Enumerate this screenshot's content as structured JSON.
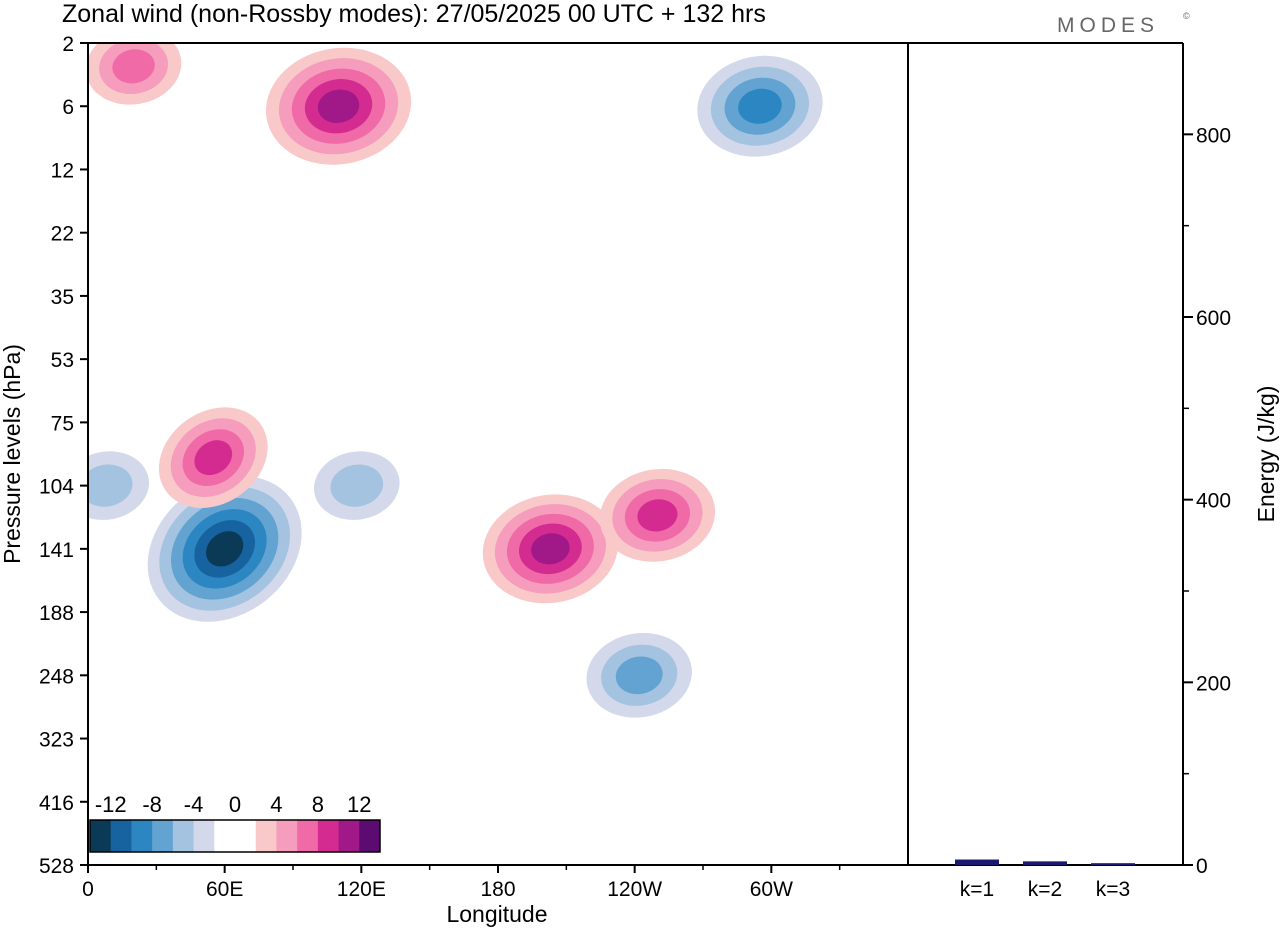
{
  "title": "Zonal wind (non-Rossby modes):  27/05/2025  00 UTC  + 132 hrs",
  "brand": "MODES",
  "brand_mark": "©",
  "chart_data": [
    {
      "type": "heatmap",
      "title": "Zonal wind (non-Rossby modes):  27/05/2025  00 UTC  + 132 hrs",
      "xlabel": "Longitude",
      "ylabel": "Pressure levels (hPa)",
      "x_ticks": [
        "0",
        "60E",
        "120E",
        "180",
        "120W",
        "60W"
      ],
      "x_tick_degrees": [
        0,
        60,
        120,
        180,
        240,
        300
      ],
      "xlim": [
        0,
        360
      ],
      "y_ticks": [
        "2",
        "6",
        "12",
        "22",
        "35",
        "53",
        "75",
        "104",
        "141",
        "188",
        "248",
        "323",
        "416",
        "528"
      ],
      "y_scale": "pressure levels (top = 2 hPa, bottom = 528 hPa)",
      "colorbar": {
        "tick_labels": [
          "-12",
          "-8",
          "-4",
          "0",
          "4",
          "8",
          "12"
        ],
        "colors": [
          "#0b3a57",
          "#1663a0",
          "#2c86c2",
          "#62a3d1",
          "#a3c3e0",
          "#d3d8ea",
          "#ffffff",
          "#ffffff",
          "#f9c9c9",
          "#f69cbc",
          "#f06aa7",
          "#d42b91",
          "#a11888",
          "#5c0b71"
        ]
      },
      "features": [
        {
          "sign": "negative",
          "lon": 60,
          "level_hpa": 141,
          "peak": -13,
          "note": "strongest easterly core"
        },
        {
          "sign": "negative",
          "lon": 8,
          "level_hpa": 104,
          "peak": -5
        },
        {
          "sign": "negative",
          "lon": 118,
          "level_hpa": 104,
          "peak": -5
        },
        {
          "sign": "negative",
          "lon": 242,
          "level_hpa": 248,
          "peak": -7
        },
        {
          "sign": "negative",
          "lon": 295,
          "level_hpa": 6,
          "peak": -9
        },
        {
          "sign": "positive",
          "lon": 55,
          "level_hpa": 90,
          "peak": 8
        },
        {
          "sign": "positive",
          "lon": 203,
          "level_hpa": 141,
          "peak": 10
        },
        {
          "sign": "positive",
          "lon": 250,
          "level_hpa": 120,
          "peak": 8
        },
        {
          "sign": "positive",
          "lon": 110,
          "level_hpa": 6,
          "peak": 11
        },
        {
          "sign": "positive",
          "lon": 20,
          "level_hpa": 3,
          "peak": 6
        }
      ]
    },
    {
      "type": "bar",
      "ylabel": "Energy (J/kg)",
      "categories": [
        "k=1",
        "k=2",
        "k=3"
      ],
      "values": [
        6,
        4,
        2
      ],
      "ylim": [
        0,
        900
      ],
      "y_ticks": [
        "0",
        "200",
        "400",
        "600",
        "800"
      ],
      "bar_color": "#1a1a6e"
    }
  ]
}
